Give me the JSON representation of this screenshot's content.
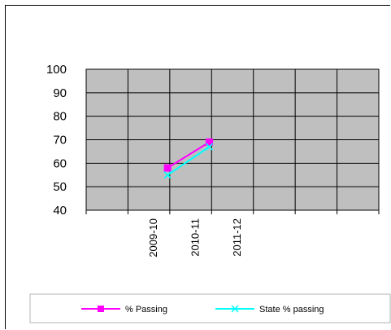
{
  "chart_data": {
    "type": "line",
    "title": "",
    "xlabel": "",
    "ylabel": "",
    "categories": [
      "",
      "2009-10",
      "2010-11",
      "2011-12",
      "",
      "",
      ""
    ],
    "ylim": [
      40,
      100
    ],
    "yticks": [
      100,
      90,
      80,
      70,
      60,
      50,
      40
    ],
    "grid": true,
    "legend_position": "bottom",
    "series": [
      {
        "name": "% Passing",
        "color": "#ff00ff",
        "marker": "square",
        "values": [
          null,
          58,
          69,
          null,
          null,
          null,
          null
        ]
      },
      {
        "name": "State % passing",
        "color": "#00ffff",
        "marker": "x",
        "values": [
          null,
          55,
          67,
          null,
          null,
          null,
          null
        ]
      }
    ]
  }
}
